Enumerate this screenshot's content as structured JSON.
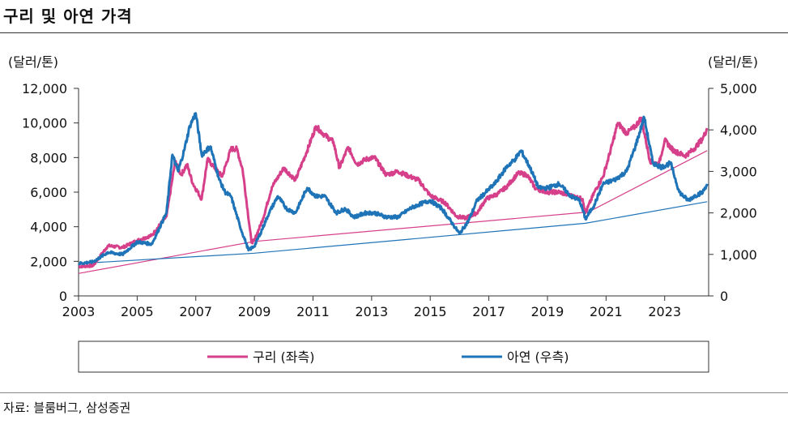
{
  "title": "구리 및 아연 가격",
  "source": "자료: 블룸버그, 삼성증권",
  "chart_data": {
    "type": "line",
    "title": "구리 및 아연 가격",
    "left_unit": "(달러/톤)",
    "right_unit": "(달러/톤)",
    "left_axis": {
      "min": 0,
      "max": 12000,
      "ticks": [
        0,
        2000,
        4000,
        6000,
        8000,
        10000,
        12000
      ],
      "tick_labels": [
        "0",
        "2,000",
        "4,000",
        "6,000",
        "8,000",
        "10,000",
        "12,000"
      ]
    },
    "right_axis": {
      "min": 0,
      "max": 5000,
      "ticks": [
        0,
        1000,
        2000,
        3000,
        4000,
        5000
      ],
      "tick_labels": [
        "0",
        "1,000",
        "2,000",
        "3,000",
        "4,000",
        "5,000"
      ]
    },
    "x_axis": {
      "min": 2003,
      "max": 2024.5,
      "ticks": [
        2003,
        2005,
        2007,
        2009,
        2011,
        2013,
        2015,
        2017,
        2019,
        2021,
        2023
      ],
      "tick_labels": [
        "2003",
        "2005",
        "2007",
        "2009",
        "2011",
        "2013",
        "2015",
        "2017",
        "2019",
        "2021",
        "2023"
      ]
    },
    "legend_position": "bottom",
    "series": [
      {
        "name": "구리 (좌측)",
        "axis": "left",
        "color": "#d63f8a",
        "x": [
          2003.0,
          2003.5,
          2004.0,
          2004.5,
          2005.0,
          2005.5,
          2006.0,
          2006.3,
          2006.5,
          2006.7,
          2006.9,
          2007.2,
          2007.4,
          2007.6,
          2007.9,
          2008.2,
          2008.4,
          2008.6,
          2008.9,
          2009.0,
          2009.3,
          2009.6,
          2010.0,
          2010.4,
          2010.8,
          2011.1,
          2011.4,
          2011.7,
          2011.9,
          2012.2,
          2012.5,
          2012.8,
          2013.1,
          2013.5,
          2013.9,
          2014.3,
          2014.6,
          2015.0,
          2015.5,
          2015.9,
          2016.2,
          2016.6,
          2016.9,
          2017.3,
          2017.6,
          2018.0,
          2018.3,
          2018.6,
          2019.0,
          2019.4,
          2019.8,
          2020.2,
          2020.3,
          2020.6,
          2020.9,
          2021.2,
          2021.4,
          2021.7,
          2022.0,
          2022.2,
          2022.5,
          2022.8,
          2023.0,
          2023.3,
          2023.7,
          2024.0,
          2024.3,
          2024.45
        ],
        "values": [
          1700,
          1750,
          2900,
          2800,
          3200,
          3500,
          4600,
          7800,
          7000,
          7600,
          6500,
          5600,
          7900,
          7500,
          6900,
          8500,
          8500,
          7300,
          3100,
          3200,
          4500,
          6300,
          7400,
          6700,
          8400,
          9800,
          9300,
          8900,
          7400,
          8600,
          7600,
          7900,
          8000,
          7000,
          7200,
          6900,
          6700,
          5800,
          5400,
          4600,
          4500,
          4800,
          5600,
          5900,
          6300,
          7100,
          7000,
          6200,
          6000,
          6000,
          5800,
          5600,
          4800,
          6000,
          6900,
          8700,
          10000,
          9400,
          9800,
          10300,
          7800,
          7600,
          9000,
          8400,
          8100,
          8500,
          9100,
          9700
        ]
      },
      {
        "name": "아연 (우측)",
        "axis": "right",
        "color": "#1f74b8",
        "x": [
          2003.0,
          2003.5,
          2004.0,
          2004.5,
          2005.0,
          2005.5,
          2006.0,
          2006.2,
          2006.4,
          2006.6,
          2006.8,
          2007.0,
          2007.2,
          2007.5,
          2007.8,
          2008.0,
          2008.2,
          2008.5,
          2008.8,
          2009.0,
          2009.2,
          2009.5,
          2009.8,
          2010.1,
          2010.4,
          2010.8,
          2011.1,
          2011.4,
          2011.8,
          2012.1,
          2012.4,
          2012.8,
          2013.1,
          2013.5,
          2013.9,
          2014.3,
          2014.6,
          2015.0,
          2015.4,
          2015.8,
          2016.0,
          2016.3,
          2016.6,
          2016.9,
          2017.2,
          2017.6,
          2017.9,
          2018.1,
          2018.4,
          2018.7,
          2019.0,
          2019.4,
          2019.8,
          2020.1,
          2020.3,
          2020.6,
          2020.9,
          2021.3,
          2021.7,
          2022.0,
          2022.3,
          2022.6,
          2022.9,
          2023.2,
          2023.5,
          2023.8,
          2024.0,
          2024.3,
          2024.45
        ],
        "values": [
          780,
          820,
          1050,
          1000,
          1300,
          1250,
          2000,
          3400,
          3000,
          3500,
          4100,
          4400,
          3400,
          3600,
          2800,
          2500,
          2400,
          1700,
          1100,
          1200,
          1500,
          2000,
          2400,
          2100,
          2000,
          2600,
          2400,
          2400,
          2000,
          2100,
          1900,
          2000,
          2000,
          1900,
          1900,
          2100,
          2200,
          2300,
          2100,
          1700,
          1500,
          1800,
          2300,
          2500,
          2700,
          3100,
          3300,
          3500,
          3100,
          2600,
          2600,
          2700,
          2400,
          2300,
          1850,
          2200,
          2700,
          2800,
          3000,
          3600,
          4300,
          3200,
          3100,
          3200,
          2500,
          2300,
          2400,
          2500,
          2700
        ]
      }
    ],
    "trend_lines": [
      {
        "series": "구리 (좌측)",
        "color": "#d63f8a",
        "axis": "left",
        "x": [
          2003.0,
          2009.0,
          2020.4,
          2024.45
        ],
        "values": [
          1300,
          3150,
          4850,
          8400
        ]
      },
      {
        "series": "아연 (우측)",
        "color": "#1f74b8",
        "axis": "right",
        "x": [
          2003.0,
          2009.0,
          2020.3,
          2024.45
        ],
        "values": [
          780,
          1030,
          1750,
          2270
        ]
      }
    ]
  }
}
